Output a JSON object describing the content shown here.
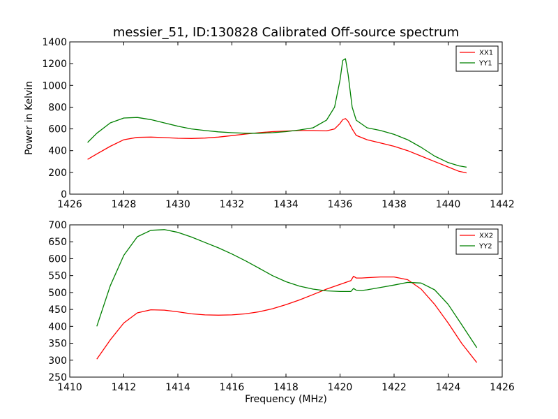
{
  "figure": {
    "title": "messier_51, ID:130828 Calibrated Off-source spectrum"
  },
  "chart_data": [
    {
      "type": "line",
      "title": "messier_51, ID:130828 Calibrated Off-source spectrum",
      "xlabel": "",
      "ylabel": "Power in Kelvin",
      "xlim": [
        1426,
        1442
      ],
      "ylim": [
        0,
        1400
      ],
      "xticks": [
        1426,
        1428,
        1430,
        1432,
        1434,
        1436,
        1438,
        1440,
        1442
      ],
      "yticks": [
        0,
        200,
        400,
        600,
        800,
        1000,
        1200,
        1400
      ],
      "grid": false,
      "legend": "top-right",
      "series": [
        {
          "name": "XX1",
          "color": "#ff0000",
          "x": [
            1426.66,
            1427.0,
            1427.5,
            1428.0,
            1428.5,
            1429.0,
            1429.5,
            1430.0,
            1430.5,
            1431.0,
            1431.5,
            1432.0,
            1432.5,
            1433.0,
            1433.5,
            1434.0,
            1434.5,
            1435.0,
            1435.5,
            1435.8,
            1436.0,
            1436.1,
            1436.2,
            1436.3,
            1436.45,
            1436.6,
            1437.0,
            1437.5,
            1438.0,
            1438.5,
            1439.0,
            1439.5,
            1440.0,
            1440.4,
            1440.68
          ],
          "values": [
            320,
            370,
            440,
            500,
            522,
            525,
            520,
            514,
            512,
            516,
            525,
            538,
            552,
            565,
            575,
            580,
            585,
            585,
            582,
            600,
            650,
            685,
            695,
            670,
            600,
            540,
            500,
            470,
            440,
            400,
            350,
            300,
            250,
            210,
            195
          ]
        },
        {
          "name": "YY1",
          "color": "#008000",
          "x": [
            1426.66,
            1427.0,
            1427.5,
            1428.0,
            1428.5,
            1429.0,
            1429.5,
            1430.0,
            1430.5,
            1431.0,
            1431.5,
            1432.0,
            1432.5,
            1433.0,
            1433.5,
            1434.0,
            1434.5,
            1435.0,
            1435.5,
            1435.8,
            1436.0,
            1436.1,
            1436.2,
            1436.3,
            1436.45,
            1436.6,
            1437.0,
            1437.5,
            1438.0,
            1438.5,
            1439.0,
            1439.5,
            1440.0,
            1440.4,
            1440.68
          ],
          "values": [
            475,
            560,
            655,
            700,
            705,
            685,
            655,
            625,
            600,
            585,
            573,
            565,
            560,
            560,
            565,
            575,
            590,
            610,
            680,
            800,
            1050,
            1230,
            1245,
            1100,
            800,
            680,
            610,
            585,
            550,
            500,
            430,
            350,
            290,
            260,
            248
          ]
        }
      ]
    },
    {
      "type": "line",
      "title": "",
      "xlabel": "Frequency (MHz)",
      "ylabel": "",
      "xlim": [
        1410,
        1426
      ],
      "ylim": [
        250,
        700
      ],
      "xticks": [
        1410,
        1412,
        1414,
        1416,
        1418,
        1420,
        1422,
        1424,
        1426
      ],
      "yticks": [
        250,
        300,
        350,
        400,
        450,
        500,
        550,
        600,
        650,
        700
      ],
      "grid": false,
      "legend": "top-right",
      "series": [
        {
          "name": "XX2",
          "color": "#ff0000",
          "x": [
            1411.0,
            1411.5,
            1412.0,
            1412.5,
            1413.0,
            1413.5,
            1414.0,
            1414.5,
            1415.0,
            1415.5,
            1416.0,
            1416.5,
            1417.0,
            1417.5,
            1418.0,
            1418.5,
            1419.0,
            1419.5,
            1420.0,
            1420.4,
            1420.5,
            1420.6,
            1420.8,
            1421.0,
            1421.5,
            1422.0,
            1422.5,
            1423.0,
            1423.5,
            1424.0,
            1424.5,
            1425.06
          ],
          "values": [
            303,
            360,
            410,
            440,
            449,
            448,
            443,
            437,
            434,
            433,
            434,
            437,
            443,
            452,
            464,
            478,
            494,
            510,
            524,
            535,
            548,
            543,
            543,
            544,
            546,
            546,
            538,
            510,
            465,
            410,
            350,
            293
          ]
        },
        {
          "name": "YY2",
          "color": "#008000",
          "x": [
            1411.0,
            1411.5,
            1412.0,
            1412.5,
            1413.0,
            1413.5,
            1414.0,
            1414.5,
            1415.0,
            1415.5,
            1416.0,
            1416.5,
            1417.0,
            1417.5,
            1418.0,
            1418.5,
            1419.0,
            1419.5,
            1420.0,
            1420.4,
            1420.5,
            1420.6,
            1420.8,
            1421.0,
            1421.5,
            1422.0,
            1422.5,
            1423.0,
            1423.5,
            1424.0,
            1424.5,
            1425.06
          ],
          "values": [
            400,
            520,
            610,
            665,
            684,
            686,
            678,
            664,
            648,
            632,
            614,
            594,
            572,
            550,
            532,
            519,
            510,
            505,
            503,
            503,
            512,
            507,
            506,
            508,
            515,
            522,
            530,
            528,
            508,
            465,
            405,
            337
          ]
        }
      ]
    }
  ]
}
